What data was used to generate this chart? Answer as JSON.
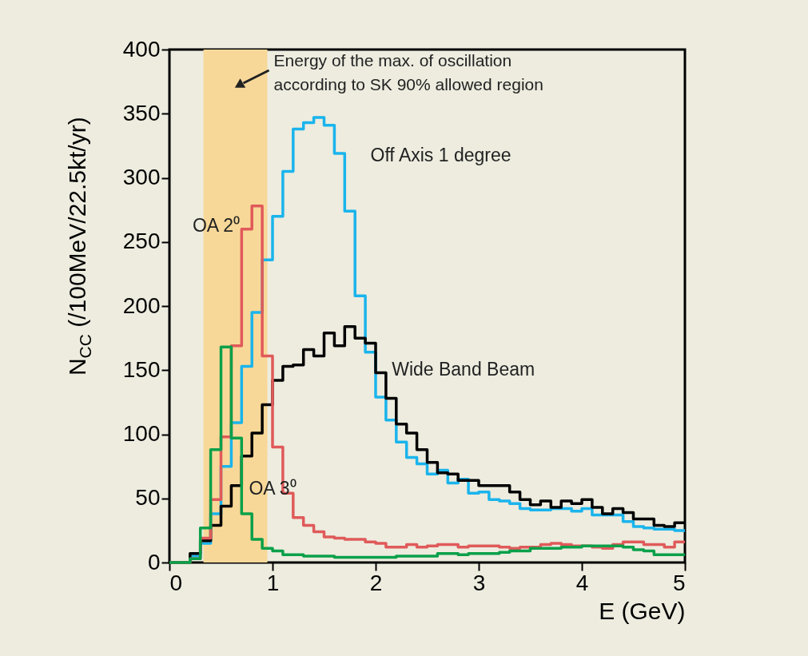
{
  "chart_data": {
    "type": "histogram",
    "bins": [
      0,
      0.1,
      0.2,
      0.3,
      0.4,
      0.5,
      0.6,
      0.7,
      0.8,
      0.9,
      1,
      1.1,
      1.2,
      1.3,
      1.4,
      1.5,
      1.6,
      1.7,
      1.8,
      1.9,
      2,
      2.1,
      2.2,
      2.3,
      2.4,
      2.5,
      2.6,
      2.7,
      2.8,
      2.9,
      3,
      3.1,
      3.2,
      3.3,
      3.4,
      3.5,
      3.6,
      3.7,
      3.8,
      3.9,
      4,
      4.1,
      4.2,
      4.3,
      4.4,
      4.5,
      4.6,
      4.7,
      4.8,
      4.9,
      5
    ],
    "xlabel": "E  (GeV)",
    "ylabel": "N$_{CC}$ (/100MeV/22.5kt/yr)",
    "xlim": [
      0,
      5
    ],
    "ylim": [
      0,
      400
    ],
    "xticks": [
      0,
      1,
      2,
      3,
      4,
      5
    ],
    "yticks": [
      0,
      50,
      100,
      150,
      200,
      250,
      300,
      350,
      400
    ],
    "grid": false,
    "series": [
      {
        "name": "Off Axis 1 degree",
        "color": "#1ab4ec",
        "values": [
          0,
          0,
          5,
          15,
          38,
          75,
          109,
          153,
          195,
          236,
          270,
          305,
          338,
          343,
          347,
          341,
          319,
          274,
          208,
          164,
          129,
          111,
          94,
          82,
          77,
          69,
          72,
          62,
          65,
          54,
          55,
          49,
          48,
          46,
          42,
          41,
          41,
          42,
          42,
          40,
          42,
          37,
          37,
          37,
          32,
          28,
          27,
          26,
          26,
          25
        ]
      },
      {
        "name": "Wide Band Beam",
        "color": "#000000",
        "values": [
          0,
          0,
          7,
          17,
          29,
          44,
          60,
          83,
          101,
          123,
          142,
          153,
          154,
          166,
          161,
          179,
          169,
          184,
          175,
          171,
          148,
          128,
          108,
          101,
          88,
          78,
          70,
          69,
          64,
          64,
          60,
          60,
          60,
          55,
          49,
          45,
          48,
          43,
          48,
          46,
          49,
          43,
          38,
          42,
          39,
          34,
          34,
          29,
          28,
          31
        ]
      },
      {
        "name": "OA 2⁰",
        "color": "#e05a5a",
        "values": [
          0,
          0,
          3,
          19,
          49,
          98,
          169,
          260,
          278,
          161,
          90,
          54,
          35,
          29,
          24,
          20,
          19,
          18,
          18,
          16,
          15,
          12,
          12,
          14,
          12,
          13,
          14,
          14,
          12,
          13,
          13,
          13,
          12,
          11,
          12,
          12,
          14,
          15,
          14,
          13,
          13,
          12,
          11,
          14,
          16,
          16,
          14,
          14,
          12,
          16
        ]
      },
      {
        "name": "OA 3⁰",
        "color": "#0aa04a",
        "values": [
          0,
          0,
          3,
          27,
          88,
          168,
          97,
          38,
          18,
          11,
          9,
          6,
          6,
          5,
          5,
          5,
          4,
          4,
          4,
          4,
          4,
          4,
          5,
          5,
          5,
          5,
          7,
          7,
          6,
          7,
          7,
          7,
          8,
          9,
          9,
          11,
          11,
          11,
          12,
          12,
          13,
          13,
          13,
          13,
          12,
          10,
          9,
          6,
          6,
          6
        ]
      }
    ],
    "bands": [
      {
        "axis": "x",
        "from": 0.33,
        "to": 0.95,
        "color": "#f8d898",
        "label": "Energy of the max. of oscillation\naccording to SK 90% allowed region"
      }
    ]
  }
}
